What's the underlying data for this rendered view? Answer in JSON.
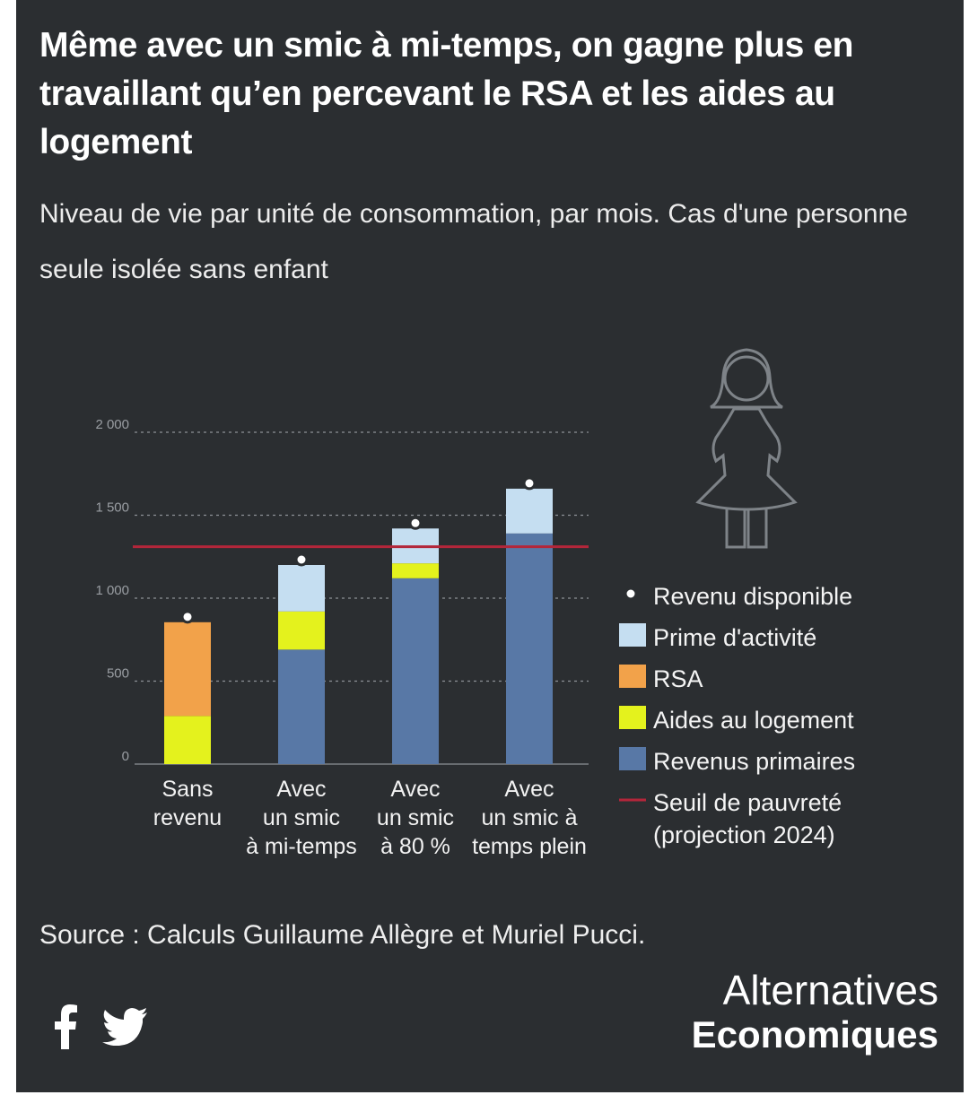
{
  "title": "Même avec un smic à mi-temps, on gagne plus en travaillant qu’en percevant le RSA et les aides au logement",
  "subtitle": "Niveau de vie par unité de consommation, par mois. Cas d'une personne seule isolée sans enfant",
  "colors": {
    "background": "#2b2e31",
    "revenus_primaires": "#5878a6",
    "aides_logement": "#e4f21d",
    "rsa": "#f2a24a",
    "prime_activite": "#c5def1",
    "seuil": "#b3263a",
    "revenu_dot_fill": "#ffffff"
  },
  "chart_data": {
    "type": "bar",
    "stacked": true,
    "categories": [
      [
        "Sans",
        "revenu"
      ],
      [
        "Avec",
        "un smic",
        "à mi-temps"
      ],
      [
        "Avec",
        "un smic",
        "à 80 %"
      ],
      [
        "Avec",
        "un smic à",
        "temps plein"
      ]
    ],
    "series": [
      {
        "key": "revenus_primaires",
        "name": "Revenus primaires",
        "values": [
          0,
          690,
          1120,
          1390
        ]
      },
      {
        "key": "aides_logement",
        "name": "Aides au logement",
        "values": [
          290,
          230,
          90,
          0
        ]
      },
      {
        "key": "rsa",
        "name": "RSA",
        "values": [
          565,
          0,
          0,
          0
        ]
      },
      {
        "key": "prime_activite",
        "name": "Prime d'activité",
        "values": [
          0,
          280,
          210,
          270
        ]
      }
    ],
    "revenu_disponible": {
      "name": "Revenu disponible",
      "values": [
        855,
        1200,
        1420,
        1660
      ]
    },
    "seuil_pauvrete": {
      "name": "Seuil de pauvreté",
      "name_line2": "(projection 2024)",
      "value": 1310
    },
    "y_ticks": [
      {
        "value": 0,
        "label": "0"
      },
      {
        "value": 500,
        "label": "500"
      },
      {
        "value": 1000,
        "label": "1 000"
      },
      {
        "value": 1500,
        "label": "1 500"
      },
      {
        "value": 2000,
        "label": "2 000"
      }
    ],
    "ylim": [
      0,
      2000
    ],
    "grid": true,
    "legend": [
      {
        "key": "revenu_disponible",
        "label": "Revenu disponible",
        "kind": "dot"
      },
      {
        "key": "prime_activite",
        "label": "Prime d'activité",
        "kind": "box"
      },
      {
        "key": "rsa",
        "label": "RSA",
        "kind": "box"
      },
      {
        "key": "aides_logement",
        "label": "Aides au logement",
        "kind": "box"
      },
      {
        "key": "revenus_primaires",
        "label": "Revenus primaires",
        "kind": "box"
      },
      {
        "key": "seuil",
        "label": "Seuil de pauvreté",
        "label2": "(projection 2024)",
        "kind": "line"
      }
    ],
    "legend_position": "right"
  },
  "source": "Source : Calculs Guillaume Allègre et Muriel Pucci.",
  "brand": {
    "line1": "Alternatives",
    "line2": "Economiques"
  },
  "icons": {
    "figure": "woman-icon",
    "social": [
      "facebook-icon",
      "twitter-icon"
    ]
  }
}
